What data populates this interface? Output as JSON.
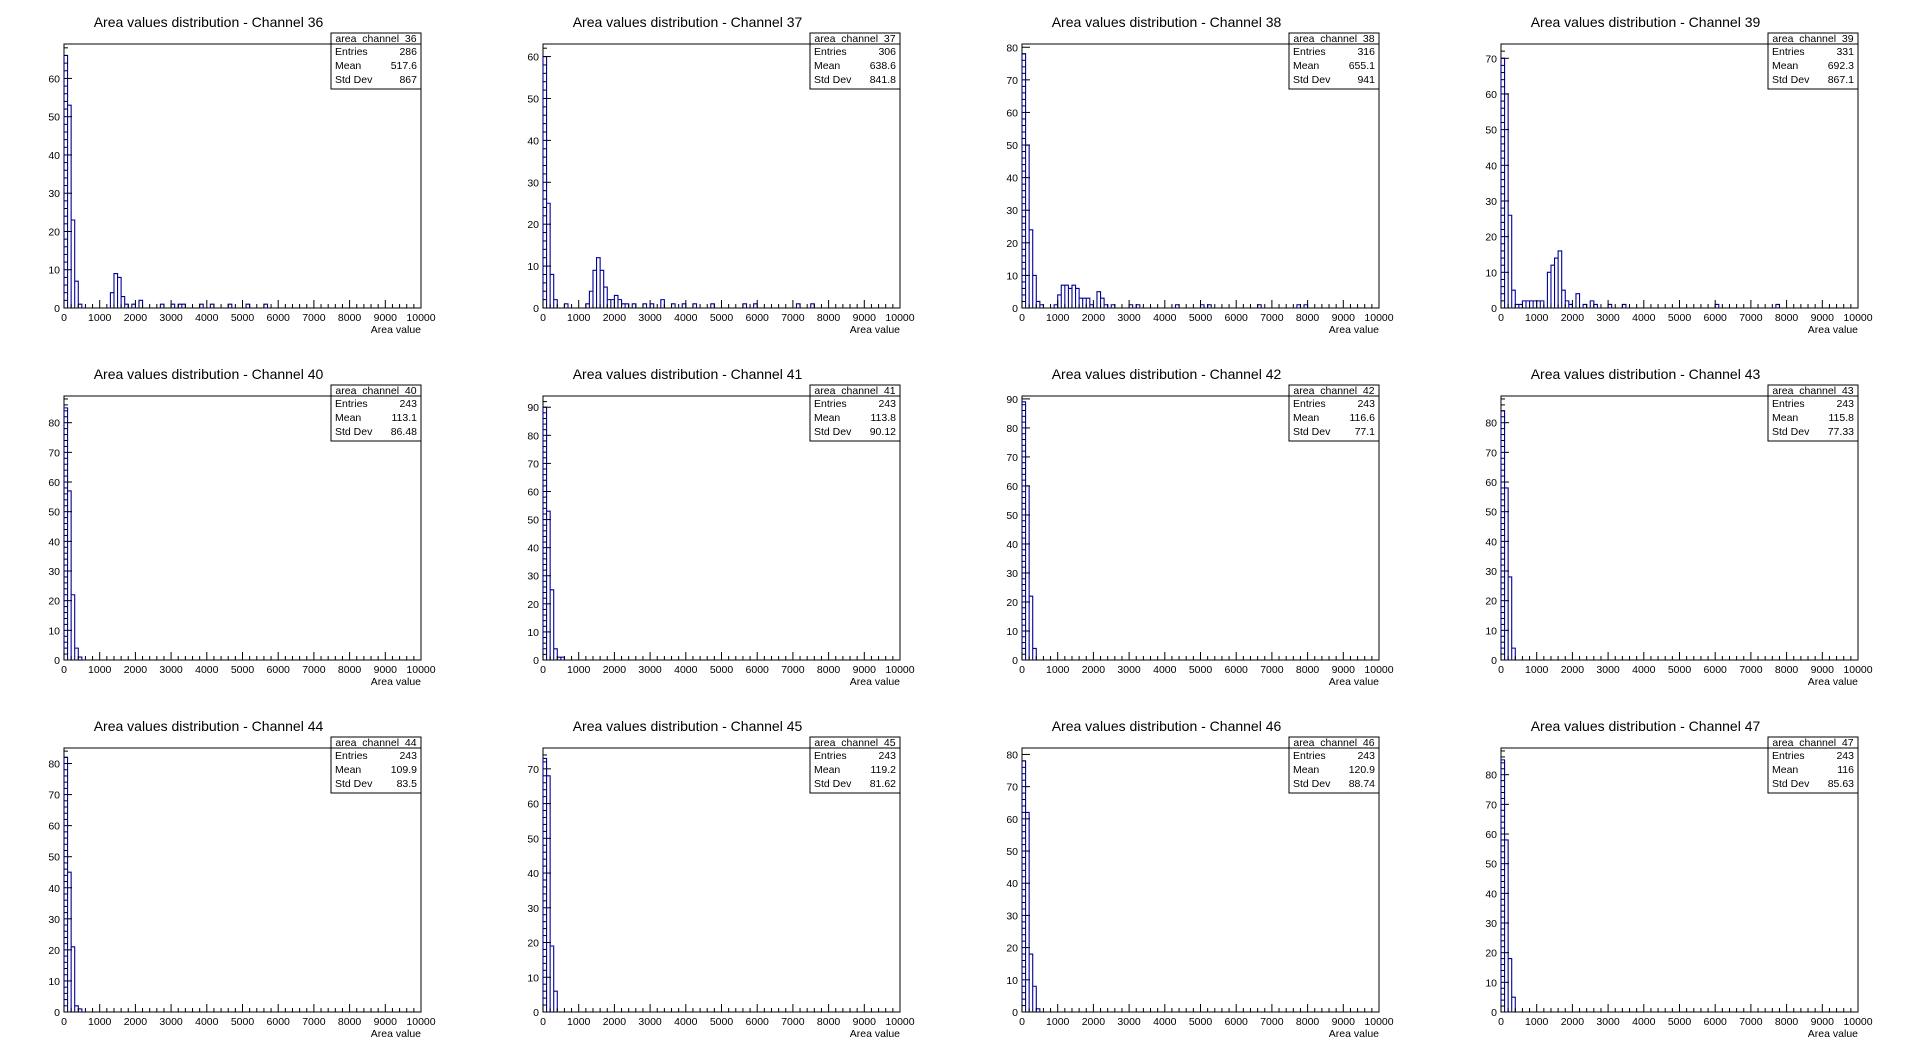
{
  "chart_data": [
    {
      "type": "bar",
      "title": "Area values distribution - Channel 36",
      "xlabel": "Area value",
      "ylabel": "",
      "xlim": [
        0,
        10000
      ],
      "ylim": [
        0,
        69
      ],
      "yticks": [
        0,
        10,
        20,
        30,
        40,
        50,
        60
      ],
      "xticks": [
        0,
        1000,
        2000,
        3000,
        4000,
        5000,
        6000,
        7000,
        8000,
        9000,
        10000
      ],
      "bin_width": 100,
      "stats": {
        "name": "area_channel_36",
        "entries_label": "Entries",
        "entries": "286",
        "mean_label": "Mean",
        "mean": "517.6",
        "stddev_label": "Std Dev",
        "stddev": "867"
      },
      "bins": [
        [
          0,
          66
        ],
        [
          100,
          53
        ],
        [
          200,
          23
        ],
        [
          300,
          7
        ],
        [
          400,
          1
        ],
        [
          1300,
          4
        ],
        [
          1400,
          9
        ],
        [
          1500,
          8
        ],
        [
          1600,
          3
        ],
        [
          1700,
          1
        ],
        [
          1900,
          1
        ],
        [
          2100,
          2
        ],
        [
          2700,
          1
        ],
        [
          3000,
          1
        ],
        [
          3200,
          1
        ],
        [
          3300,
          1
        ],
        [
          3800,
          1
        ],
        [
          4100,
          1
        ],
        [
          4600,
          1
        ],
        [
          5100,
          1
        ],
        [
          5600,
          1
        ]
      ]
    },
    {
      "type": "bar",
      "title": "Area values distribution - Channel 37",
      "xlabel": "Area value",
      "ylabel": "",
      "xlim": [
        0,
        10000
      ],
      "ylim": [
        0,
        63
      ],
      "yticks": [
        0,
        10,
        20,
        30,
        40,
        50,
        60
      ],
      "xticks": [
        0,
        1000,
        2000,
        3000,
        4000,
        5000,
        6000,
        7000,
        8000,
        9000,
        10000
      ],
      "bin_width": 100,
      "stats": {
        "name": "area_channel_37",
        "entries_label": "Entries",
        "entries": "306",
        "mean_label": "Mean",
        "mean": "638.6",
        "stddev_label": "Std Dev",
        "stddev": "841.8"
      },
      "bins": [
        [
          0,
          60
        ],
        [
          100,
          25
        ],
        [
          200,
          8
        ],
        [
          300,
          2
        ],
        [
          600,
          1
        ],
        [
          1200,
          1
        ],
        [
          1300,
          4
        ],
        [
          1400,
          9
        ],
        [
          1500,
          12
        ],
        [
          1600,
          9
        ],
        [
          1700,
          5
        ],
        [
          1800,
          2
        ],
        [
          1900,
          2
        ],
        [
          2000,
          3
        ],
        [
          2100,
          2
        ],
        [
          2200,
          1
        ],
        [
          2300,
          1
        ],
        [
          2500,
          1
        ],
        [
          2800,
          1
        ],
        [
          3000,
          1
        ],
        [
          3300,
          2
        ],
        [
          3600,
          1
        ],
        [
          3900,
          1
        ],
        [
          4200,
          1
        ],
        [
          4700,
          1
        ],
        [
          5600,
          1
        ],
        [
          5900,
          1
        ],
        [
          7100,
          1
        ],
        [
          7500,
          1
        ]
      ]
    },
    {
      "type": "bar",
      "title": "Area values distribution - Channel 38",
      "xlabel": "Area value",
      "ylabel": "",
      "xlim": [
        0,
        10000
      ],
      "ylim": [
        0,
        81
      ],
      "yticks": [
        0,
        10,
        20,
        30,
        40,
        50,
        60,
        70,
        80
      ],
      "xticks": [
        0,
        1000,
        2000,
        3000,
        4000,
        5000,
        6000,
        7000,
        8000,
        9000,
        10000
      ],
      "bin_width": 100,
      "stats": {
        "name": "area_channel_38",
        "entries_label": "Entries",
        "entries": "316",
        "mean_label": "Mean",
        "mean": "655.1",
        "stddev_label": "Std Dev",
        "stddev": "941"
      },
      "bins": [
        [
          0,
          78
        ],
        [
          100,
          50
        ],
        [
          200,
          24
        ],
        [
          300,
          10
        ],
        [
          400,
          2
        ],
        [
          500,
          1
        ],
        [
          900,
          1
        ],
        [
          1000,
          4
        ],
        [
          1100,
          7
        ],
        [
          1200,
          7
        ],
        [
          1300,
          6
        ],
        [
          1400,
          7
        ],
        [
          1500,
          6
        ],
        [
          1600,
          3
        ],
        [
          1700,
          3
        ],
        [
          1800,
          3
        ],
        [
          1900,
          1
        ],
        [
          2100,
          5
        ],
        [
          2200,
          3
        ],
        [
          2300,
          1
        ],
        [
          2500,
          1
        ],
        [
          3000,
          1
        ],
        [
          3200,
          1
        ],
        [
          4300,
          1
        ],
        [
          5000,
          1
        ],
        [
          5200,
          1
        ],
        [
          6600,
          1
        ],
        [
          7700,
          1
        ],
        [
          7900,
          1
        ]
      ]
    },
    {
      "type": "bar",
      "title": "Area values distribution - Channel 39",
      "xlabel": "Area value",
      "ylabel": "",
      "xlim": [
        0,
        10000
      ],
      "ylim": [
        0,
        74
      ],
      "yticks": [
        0,
        10,
        20,
        30,
        40,
        50,
        60,
        70
      ],
      "xticks": [
        0,
        1000,
        2000,
        3000,
        4000,
        5000,
        6000,
        7000,
        8000,
        9000,
        10000
      ],
      "bin_width": 100,
      "stats": {
        "name": "area_channel_39",
        "entries_label": "Entries",
        "entries": "331",
        "mean_label": "Mean",
        "mean": "692.3",
        "stddev_label": "Std Dev",
        "stddev": "867.1"
      },
      "bins": [
        [
          0,
          70
        ],
        [
          100,
          60
        ],
        [
          200,
          26
        ],
        [
          300,
          5
        ],
        [
          400,
          1
        ],
        [
          500,
          1
        ],
        [
          600,
          2
        ],
        [
          700,
          2
        ],
        [
          800,
          2
        ],
        [
          900,
          2
        ],
        [
          1000,
          2
        ],
        [
          1100,
          2
        ],
        [
          1300,
          10
        ],
        [
          1400,
          12
        ],
        [
          1500,
          14
        ],
        [
          1600,
          16
        ],
        [
          1700,
          5
        ],
        [
          1800,
          2
        ],
        [
          1900,
          1
        ],
        [
          2100,
          4
        ],
        [
          2300,
          1
        ],
        [
          2500,
          2
        ],
        [
          2600,
          1
        ],
        [
          3000,
          1
        ],
        [
          3400,
          1
        ],
        [
          6000,
          1
        ],
        [
          7700,
          1
        ]
      ]
    },
    {
      "type": "bar",
      "title": "Area values distribution - Channel 40",
      "xlabel": "Area value",
      "ylabel": "",
      "xlim": [
        0,
        10000
      ],
      "ylim": [
        0,
        89
      ],
      "yticks": [
        0,
        10,
        20,
        30,
        40,
        50,
        60,
        70,
        80
      ],
      "xticks": [
        0,
        1000,
        2000,
        3000,
        4000,
        5000,
        6000,
        7000,
        8000,
        9000,
        10000
      ],
      "bin_width": 100,
      "stats": {
        "name": "area_channel_40",
        "entries_label": "Entries",
        "entries": "243",
        "mean_label": "Mean",
        "mean": "113.1",
        "stddev_label": "Std Dev",
        "stddev": "86.48"
      },
      "bins": [
        [
          0,
          85
        ],
        [
          100,
          57
        ],
        [
          200,
          22
        ],
        [
          300,
          4
        ],
        [
          400,
          1
        ]
      ]
    },
    {
      "type": "bar",
      "title": "Area values distribution - Channel 41",
      "xlabel": "Area value",
      "ylabel": "",
      "xlim": [
        0,
        10000
      ],
      "ylim": [
        0,
        94
      ],
      "yticks": [
        0,
        10,
        20,
        30,
        40,
        50,
        60,
        70,
        80,
        90
      ],
      "xticks": [
        0,
        1000,
        2000,
        3000,
        4000,
        5000,
        6000,
        7000,
        8000,
        9000,
        10000
      ],
      "bin_width": 100,
      "stats": {
        "name": "area_channel_41",
        "entries_label": "Entries",
        "entries": "243",
        "mean_label": "Mean",
        "mean": "113.8",
        "stddev_label": "Std Dev",
        "stddev": "90.12"
      },
      "bins": [
        [
          0,
          90
        ],
        [
          100,
          53
        ],
        [
          200,
          25
        ],
        [
          300,
          4
        ],
        [
          400,
          1
        ],
        [
          500,
          1
        ]
      ]
    },
    {
      "type": "bar",
      "title": "Area values distribution - Channel 42",
      "xlabel": "Area value",
      "ylabel": "",
      "xlim": [
        0,
        10000
      ],
      "ylim": [
        0,
        91
      ],
      "yticks": [
        0,
        10,
        20,
        30,
        40,
        50,
        60,
        70,
        80,
        90
      ],
      "xticks": [
        0,
        1000,
        2000,
        3000,
        4000,
        5000,
        6000,
        7000,
        8000,
        9000,
        10000
      ],
      "bin_width": 100,
      "stats": {
        "name": "area_channel_42",
        "entries_label": "Entries",
        "entries": "243",
        "mean_label": "Mean",
        "mean": "116.6",
        "stddev_label": "Std Dev",
        "stddev": "77.1"
      },
      "bins": [
        [
          0,
          89
        ],
        [
          100,
          60
        ],
        [
          200,
          22
        ],
        [
          300,
          4
        ]
      ]
    },
    {
      "type": "bar",
      "title": "Area values distribution - Channel 43",
      "xlabel": "Area value",
      "ylabel": "",
      "xlim": [
        0,
        10000
      ],
      "ylim": [
        0,
        89
      ],
      "yticks": [
        0,
        10,
        20,
        30,
        40,
        50,
        60,
        70,
        80
      ],
      "xticks": [
        0,
        1000,
        2000,
        3000,
        4000,
        5000,
        6000,
        7000,
        8000,
        9000,
        10000
      ],
      "bin_width": 100,
      "stats": {
        "name": "area_channel_43",
        "entries_label": "Entries",
        "entries": "243",
        "mean_label": "Mean",
        "mean": "115.8",
        "stddev_label": "Std Dev",
        "stddev": "77.33"
      },
      "bins": [
        [
          0,
          84
        ],
        [
          100,
          58
        ],
        [
          200,
          28
        ],
        [
          300,
          4
        ]
      ]
    },
    {
      "type": "bar",
      "title": "Area values distribution - Channel 44",
      "xlabel": "Area value",
      "ylabel": "",
      "xlim": [
        0,
        10000
      ],
      "ylim": [
        0,
        85
      ],
      "yticks": [
        0,
        10,
        20,
        30,
        40,
        50,
        60,
        70,
        80
      ],
      "xticks": [
        0,
        1000,
        2000,
        3000,
        4000,
        5000,
        6000,
        7000,
        8000,
        9000,
        10000
      ],
      "bin_width": 100,
      "stats": {
        "name": "area_channel_44",
        "entries_label": "Entries",
        "entries": "243",
        "mean_label": "Mean",
        "mean": "109.9",
        "stddev_label": "Std Dev",
        "stddev": "83.5"
      },
      "bins": [
        [
          0,
          82
        ],
        [
          100,
          45
        ],
        [
          200,
          21
        ],
        [
          300,
          2
        ],
        [
          400,
          1
        ]
      ]
    },
    {
      "type": "bar",
      "title": "Area values distribution - Channel 45",
      "xlabel": "Area value",
      "ylabel": "",
      "xlim": [
        0,
        10000
      ],
      "ylim": [
        0,
        76
      ],
      "yticks": [
        0,
        10,
        20,
        30,
        40,
        50,
        60,
        70
      ],
      "xticks": [
        0,
        1000,
        2000,
        3000,
        4000,
        5000,
        6000,
        7000,
        8000,
        9000,
        10000
      ],
      "bin_width": 100,
      "stats": {
        "name": "area_channel_45",
        "entries_label": "Entries",
        "entries": "243",
        "mean_label": "Mean",
        "mean": "119.2",
        "stddev_label": "Std Dev",
        "stddev": "81.62"
      },
      "bins": [
        [
          0,
          73
        ],
        [
          100,
          68
        ],
        [
          200,
          19
        ],
        [
          300,
          6
        ]
      ]
    },
    {
      "type": "bar",
      "title": "Area values distribution - Channel 46",
      "xlabel": "Area value",
      "ylabel": "",
      "xlim": [
        0,
        10000
      ],
      "ylim": [
        0,
        82
      ],
      "yticks": [
        0,
        10,
        20,
        30,
        40,
        50,
        60,
        70,
        80
      ],
      "xticks": [
        0,
        1000,
        2000,
        3000,
        4000,
        5000,
        6000,
        7000,
        8000,
        9000,
        10000
      ],
      "bin_width": 100,
      "stats": {
        "name": "area_channel_46",
        "entries_label": "Entries",
        "entries": "243",
        "mean_label": "Mean",
        "mean": "120.9",
        "stddev_label": "Std Dev",
        "stddev": "88.74"
      },
      "bins": [
        [
          0,
          78
        ],
        [
          100,
          62
        ],
        [
          200,
          18
        ],
        [
          300,
          8
        ],
        [
          400,
          1
        ]
      ]
    },
    {
      "type": "bar",
      "title": "Area values distribution - Channel 47",
      "xlabel": "Area value",
      "ylabel": "",
      "xlim": [
        0,
        10000
      ],
      "ylim": [
        0,
        89
      ],
      "yticks": [
        0,
        10,
        20,
        30,
        40,
        50,
        60,
        70,
        80
      ],
      "xticks": [
        0,
        1000,
        2000,
        3000,
        4000,
        5000,
        6000,
        7000,
        8000,
        9000,
        10000
      ],
      "bin_width": 100,
      "stats": {
        "name": "area_channel_47",
        "entries_label": "Entries",
        "entries": "243",
        "mean_label": "Mean",
        "mean": "116",
        "stddev_label": "Std Dev",
        "stddev": "85.63"
      },
      "bins": [
        [
          0,
          85
        ],
        [
          100,
          58
        ],
        [
          200,
          18
        ],
        [
          300,
          5
        ]
      ]
    }
  ],
  "colors": {
    "line": "#000099",
    "axis": "#000000",
    "background": "#ffffff"
  }
}
